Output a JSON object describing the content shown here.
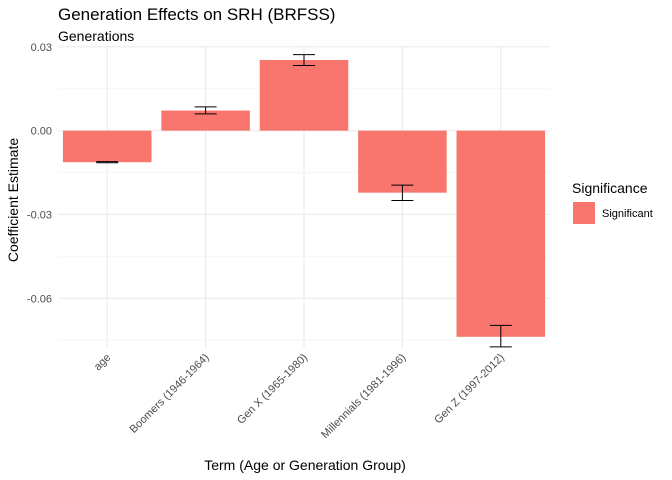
{
  "title": "Generation Effects on SRH (BRFSS)",
  "subtitle": "Generations",
  "chart_data": {
    "type": "bar",
    "title": "Generation Effects on SRH (BRFSS)",
    "subtitle": "Generations",
    "xlabel": "Term (Age or Generation Group)",
    "ylabel": "Coefficient Estimate",
    "categories": [
      "age",
      "Boomers (1946-1964)",
      "Gen X (1965-1980)",
      "Millennials (1981-1996)",
      "Gen Z (1997-2012)"
    ],
    "series": [
      {
        "name": "Significant",
        "values": [
          -0.0113,
          0.0072,
          0.0253,
          -0.0222,
          -0.0738
        ],
        "error_low": [
          -0.0115,
          0.006,
          0.0233,
          -0.025,
          -0.0774
        ],
        "error_high": [
          -0.0111,
          0.0085,
          0.0272,
          -0.0195,
          -0.0697
        ],
        "color": "#F8766D"
      }
    ],
    "ylim": [
      -0.0778,
      0.0303
    ],
    "yticks": [
      0.03,
      0.0,
      -0.03,
      -0.06
    ],
    "ytick_labels": [
      "0.03",
      "0.00",
      "-0.03",
      "-0.06"
    ],
    "grid": true,
    "legend": {
      "title": "Significance",
      "entries": [
        "Significant"
      ],
      "position": "right"
    }
  }
}
